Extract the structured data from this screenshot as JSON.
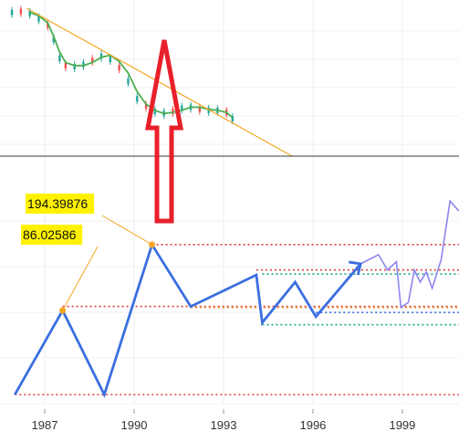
{
  "chart_data": [
    {
      "type": "line",
      "panel": "price-with-moving-average",
      "series": [
        {
          "kind": "candles",
          "x": [
            1985.9,
            1986.2,
            1986.5,
            1986.8,
            1987.1,
            1987.3,
            1987.5,
            1987.7,
            1988.0,
            1988.3,
            1988.6,
            1988.9,
            1989.2,
            1989.5,
            1989.8,
            1990.1,
            1990.4,
            1990.7,
            1991.0,
            1991.3,
            1991.6,
            1991.9,
            1992.2,
            1992.5,
            1992.8,
            1993.1,
            1993.3
          ],
          "values": [
            138,
            139,
            137,
            132,
            126,
            112,
            94,
            87,
            86,
            88,
            92,
            96,
            93,
            85,
            72,
            55,
            48,
            43,
            41,
            43,
            46,
            47,
            45,
            44,
            44,
            42,
            36
          ]
        },
        {
          "kind": "moving-average",
          "color": "#4caf50",
          "x": [
            1986.5,
            1986.8,
            1987.1,
            1987.3,
            1987.5,
            1987.7,
            1988.0,
            1988.3,
            1988.6,
            1988.9,
            1989.2,
            1989.5,
            1989.8,
            1990.1,
            1990.4,
            1990.7,
            1991.0,
            1991.3,
            1991.6,
            1991.9,
            1992.2,
            1992.5,
            1992.8,
            1993.1,
            1993.3
          ],
          "values": [
            138,
            135,
            128,
            115,
            100,
            90,
            87,
            87,
            90,
            95,
            97,
            91,
            80,
            62,
            50,
            44,
            41,
            42,
            44,
            47,
            47,
            45,
            44,
            42,
            37
          ]
        },
        {
          "kind": "trendline",
          "color": "#f5a623",
          "x": [
            1986.4,
            1995.3
          ],
          "values": [
            142,
            0
          ]
        }
      ]
    },
    {
      "type": "line",
      "panel": "swing-projection",
      "series": [
        {
          "kind": "zigzag",
          "color": "#3b6fe0",
          "x": [
            1986.0,
            1987.6,
            1989.0,
            1990.6,
            1991.9,
            1994.1,
            1994.3,
            1995.4,
            1996.1,
            1997.6
          ],
          "values": [
            17,
            100,
            17,
            165,
            104,
            135,
            88,
            128,
            94,
            146
          ]
        },
        {
          "kind": "projection",
          "color": "#8c86f0",
          "x": [
            1997.6,
            1998.2,
            1998.5,
            1998.8,
            1998.95,
            1999.2,
            1999.4,
            1999.6,
            1999.8,
            2000.0,
            2000.3,
            2000.6,
            2000.9
          ],
          "values": [
            146,
            155,
            140,
            148,
            103,
            108,
            140,
            128,
            138,
            122,
            150,
            208,
            198
          ]
        }
      ],
      "levels": [
        {
          "value": 165,
          "color": "#e23b3b"
        },
        {
          "value": 140,
          "color": "#e23b3b"
        },
        {
          "value": 136,
          "color": "#15a78a"
        },
        {
          "value": 104,
          "color": "#e23b3b"
        },
        {
          "value": 103,
          "color": "#f08a24"
        },
        {
          "value": 98,
          "color": "#3b6fe0"
        },
        {
          "value": 86,
          "color": "#15a78a"
        },
        {
          "value": 17,
          "color": "#e23b3b"
        }
      ],
      "callouts": [
        {
          "label": "194.39876",
          "x": 1990.6,
          "value": 165
        },
        {
          "label": "86.02586",
          "x": 1987.6,
          "value": 100
        }
      ]
    }
  ],
  "x_axis": {
    "ticks": [
      {
        "value": 1987,
        "label": "1987"
      },
      {
        "value": 1990,
        "label": "1990"
      },
      {
        "value": 1993,
        "label": "1993"
      },
      {
        "value": 1996,
        "label": "1996"
      },
      {
        "value": 1999,
        "label": "1999"
      }
    ],
    "range": [
      1985.5,
      2000.9
    ],
    "grid": true
  },
  "annotation_arrow": {
    "color": "#e8202a",
    "direction": "up"
  }
}
